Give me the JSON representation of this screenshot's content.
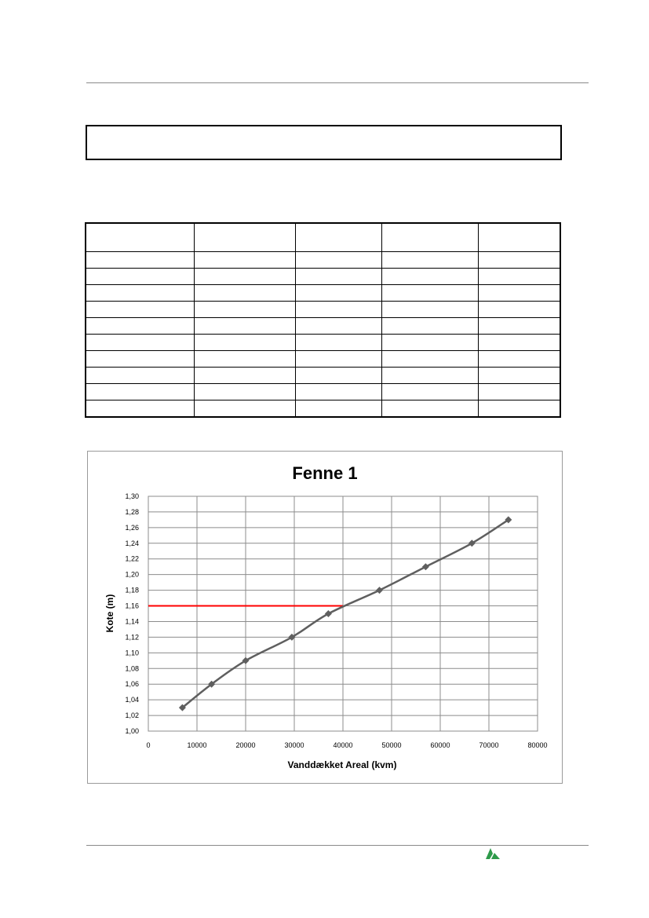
{
  "chart_data": {
    "type": "line",
    "title": "Fenne 1",
    "xlabel": "Vanddækket Areal (kvm)",
    "ylabel": "Kote (m)",
    "xlim": [
      0,
      80000
    ],
    "ylim": [
      1.0,
      1.3
    ],
    "x_ticks": [
      "0",
      "10000",
      "20000",
      "30000",
      "40000",
      "50000",
      "60000",
      "70000",
      "80000"
    ],
    "y_ticks": [
      "1,00",
      "1,02",
      "1,04",
      "1,06",
      "1,08",
      "1,10",
      "1,12",
      "1,14",
      "1,16",
      "1,18",
      "1,20",
      "1,22",
      "1,24",
      "1,26",
      "1,28",
      "1,30"
    ],
    "grid": true,
    "legend": "none",
    "series": [
      {
        "x": [
          7000,
          13000,
          20000,
          29500,
          37000,
          47500,
          57000,
          66500,
          74000
        ],
        "y": [
          1.03,
          1.06,
          1.09,
          1.12,
          1.15,
          1.18,
          1.21,
          1.24,
          1.27
        ],
        "color": "#5f5f5f",
        "marker": "diamond"
      }
    ],
    "reference_line": {
      "y": 1.16,
      "x_from": 0,
      "x_to": 40000,
      "color": "#ff0000"
    }
  },
  "colors": {
    "series": "#5f5f5f",
    "reference": "#ff0000",
    "grid": "#8c8c8c",
    "logo": "#2e9a4a"
  },
  "logo": {
    "icon": "company-logo-icon"
  }
}
